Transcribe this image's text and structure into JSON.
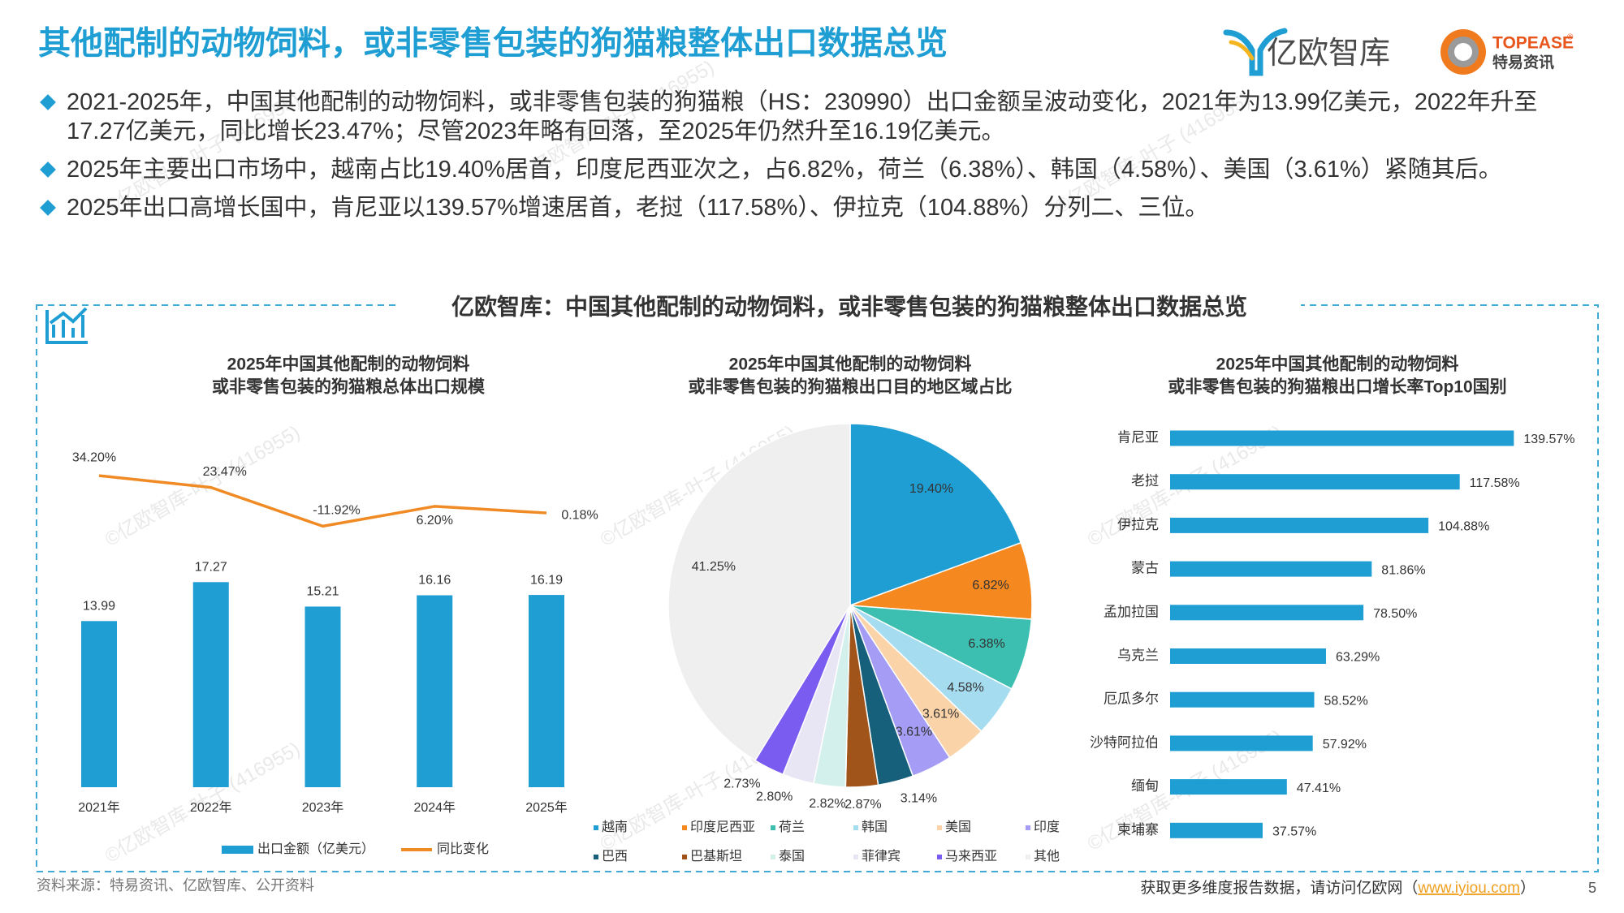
{
  "header": {
    "title": "其他配制的动物饲料，或非零售包装的狗猫粮整体出口数据总览",
    "brand1": "亿欧智库",
    "brand2": {
      "name": "TOPEASE",
      "mark": "®",
      "sub": "特易资讯"
    }
  },
  "bullets": [
    {
      "lines": [
        "2021-2025年，中国其他配制的动物饲料，或非零售包装的狗猫粮（HS：230990）出口金额呈波动变化，2021年为13.99亿美元，2022年升至",
        "17.27亿美元，同比增长23.47%；尽管2023年略有回落，至2025年仍然升至16.19亿美元。"
      ]
    },
    {
      "lines": [
        "2025年主要出口市场中，越南占比19.40%居首，印度尼西亚次之，占6.82%，荷兰（6.38%）、韩国（4.58%）、美国（3.61%）紧随其后。"
      ]
    },
    {
      "lines": [
        "2025年出口高增长国中，肯尼亚以139.57%增速居首，老挝（117.58%）、伊拉克（104.88%）分列二、三位。"
      ]
    }
  ],
  "section_title": "亿欧智库：中国其他配制的动物饲料，或非零售包装的狗猫粮整体出口数据总览",
  "watermark": "©亿欧智库-叶子 (416955)",
  "chart_data": [
    {
      "type": "combo",
      "title": [
        "2025年中国其他配制的动物饲料",
        "或非零售包装的狗猫粮总体出口规模"
      ],
      "categories": [
        "2021年",
        "2022年",
        "2023年",
        "2024年",
        "2025年"
      ],
      "series": [
        {
          "name": "出口金额（亿美元）",
          "type": "bar",
          "color": "#1f9ed4",
          "values": [
            13.99,
            17.27,
            15.21,
            16.16,
            16.19
          ]
        },
        {
          "name": "同比变化",
          "type": "line",
          "axis": "y2",
          "color": "#f08a24",
          "values": [
            34.2,
            23.47,
            -11.92,
            6.2,
            0.18
          ],
          "value_labels": [
            "34.20%",
            "23.47%",
            "-11.92%",
            "6.20%",
            "0.18%"
          ]
        }
      ],
      "ylim": [
        0,
        30
      ],
      "y2lim": [
        -250,
        75
      ]
    },
    {
      "type": "pie",
      "title": [
        "2025年中国其他配制的动物饲料",
        "或非零售包装的狗猫粮出口目的地区域占比"
      ],
      "categories": [
        "越南",
        "印度尼西亚",
        "荷兰",
        "韩国",
        "美国",
        "印度",
        "巴西",
        "巴基斯坦",
        "泰国",
        "菲律宾",
        "马来西亚",
        "其他"
      ],
      "values": [
        19.4,
        6.82,
        6.38,
        4.58,
        3.61,
        3.61,
        3.14,
        2.87,
        2.82,
        2.8,
        2.73,
        41.25
      ],
      "value_labels": [
        "19.40%",
        "6.82%",
        "6.38%",
        "4.58%",
        "3.61%",
        "3.61%",
        "3.14%",
        "2.87%",
        "2.82%",
        "2.80%",
        "2.73%",
        "41.25%"
      ],
      "colors": [
        "#1f9ed4",
        "#f5891f",
        "#3cbfb0",
        "#a6dcf0",
        "#fbd3a8",
        "#a49cf5",
        "#17607c",
        "#a0541a",
        "#d4f0ec",
        "#e8e6f5",
        "#7b5cf0",
        "#efefef"
      ]
    },
    {
      "type": "hbar",
      "title": [
        "2025年中国其他配制的动物饲料",
        "或非零售包装的狗猫粮出口增长率Top10国别"
      ],
      "categories": [
        "肯尼亚",
        "老挝",
        "伊拉克",
        "蒙古",
        "孟加拉国",
        "乌克兰",
        "厄瓜多尔",
        "沙特阿拉伯",
        "缅甸",
        "柬埔寨"
      ],
      "values": [
        139.57,
        117.58,
        104.88,
        81.86,
        78.5,
        63.29,
        58.52,
        57.92,
        47.41,
        37.57
      ],
      "value_labels": [
        "139.57%",
        "117.58%",
        "104.88%",
        "81.86%",
        "78.50%",
        "63.29%",
        "58.52%",
        "57.92%",
        "47.41%",
        "37.57%"
      ],
      "color": "#1f9ed4",
      "xlim": [
        0,
        150
      ]
    }
  ],
  "footer": {
    "source": "资料来源：特易资讯、亿欧智库、公开资料",
    "cta": "获取更多维度报告数据，请访问亿欧网（",
    "link": "www.iyiou.com",
    "cta_end": "）",
    "page": "5"
  }
}
